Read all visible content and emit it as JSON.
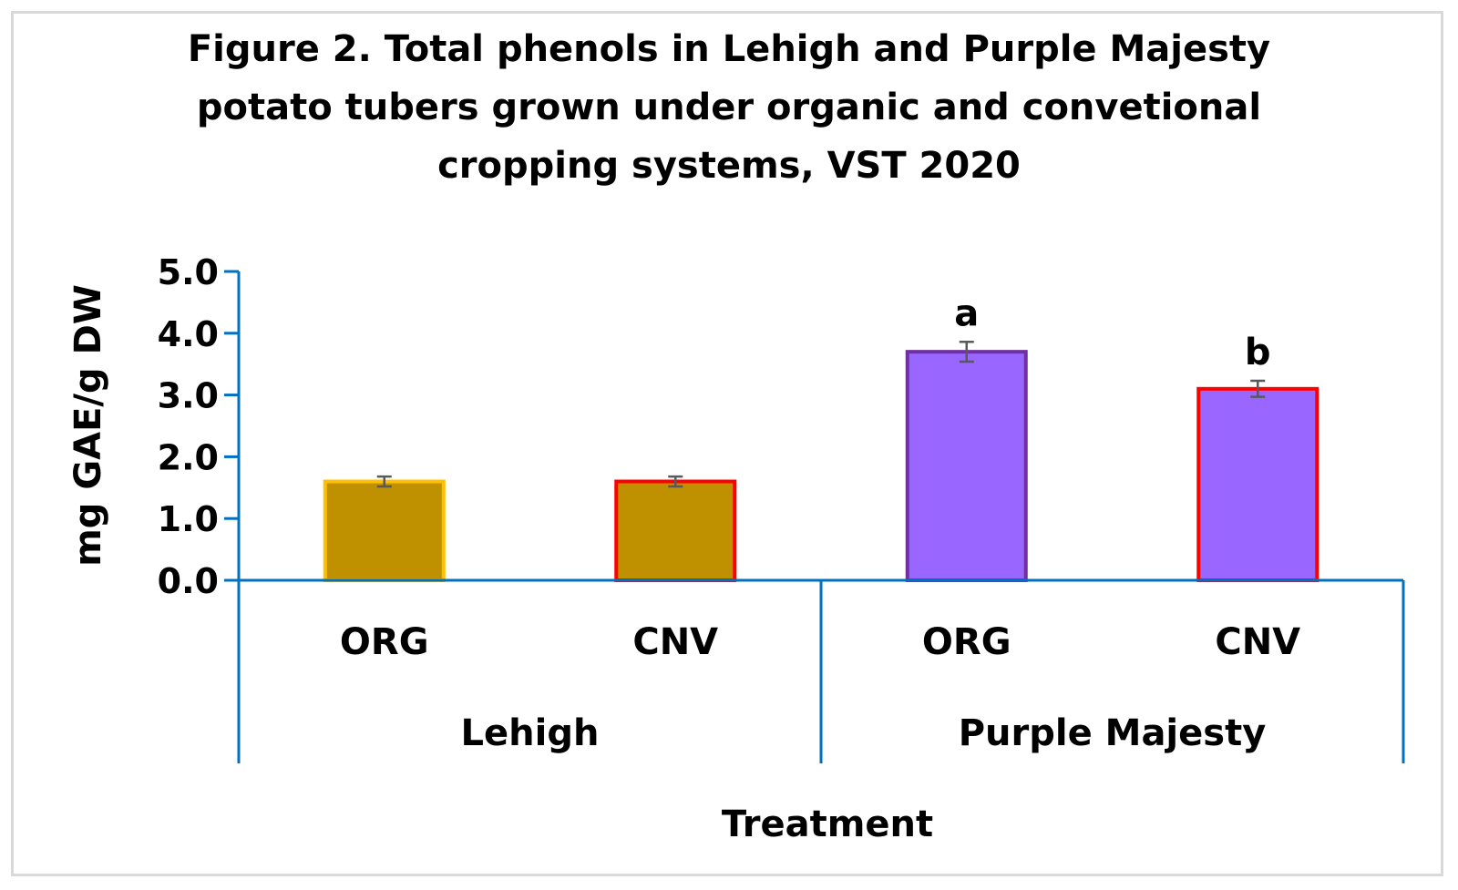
{
  "title_lines": [
    "Figure 2. Total phenols in Lehigh and Purple Majesty",
    "potato tubers grown under organic and convetional",
    "cropping systems, VST 2020"
  ],
  "colors": {
    "lehigh_fill": "#bf9000",
    "purple_fill": "#9966ff",
    "org_lehigh_border": "#ffc000",
    "cnv_border": "#ff0000",
    "org_purple_border": "#7030a0",
    "axis": "#0070c0",
    "error_bar": "#595959"
  },
  "chart_data": {
    "type": "bar",
    "title": "Figure 2. Total phenols in Lehigh and Purple Majesty potato tubers grown under organic and convetional cropping systems, VST 2020",
    "xlabel": "Treatment",
    "ylabel": "mg GAE/g DW",
    "ylim": [
      0,
      5
    ],
    "yticks": [
      "0.0",
      "1.0",
      "2.0",
      "3.0",
      "4.0",
      "5.0"
    ],
    "groups": [
      {
        "name": "Lehigh",
        "bars": [
          {
            "category": "ORG",
            "value": 1.6,
            "error": 0.08,
            "label": "",
            "fill": "#bf9000",
            "border": "#ffc000"
          },
          {
            "category": "CNV",
            "value": 1.6,
            "error": 0.08,
            "label": "",
            "fill": "#bf9000",
            "border": "#ff0000"
          }
        ]
      },
      {
        "name": "Purple Majesty",
        "bars": [
          {
            "category": "ORG",
            "value": 3.7,
            "error": 0.16,
            "label": "a",
            "fill": "#9966ff",
            "border": "#7030a0"
          },
          {
            "category": "CNV",
            "value": 3.1,
            "error": 0.13,
            "label": "b",
            "fill": "#9966ff",
            "border": "#ff0000"
          }
        ]
      }
    ],
    "grid": false,
    "legend": "none"
  }
}
